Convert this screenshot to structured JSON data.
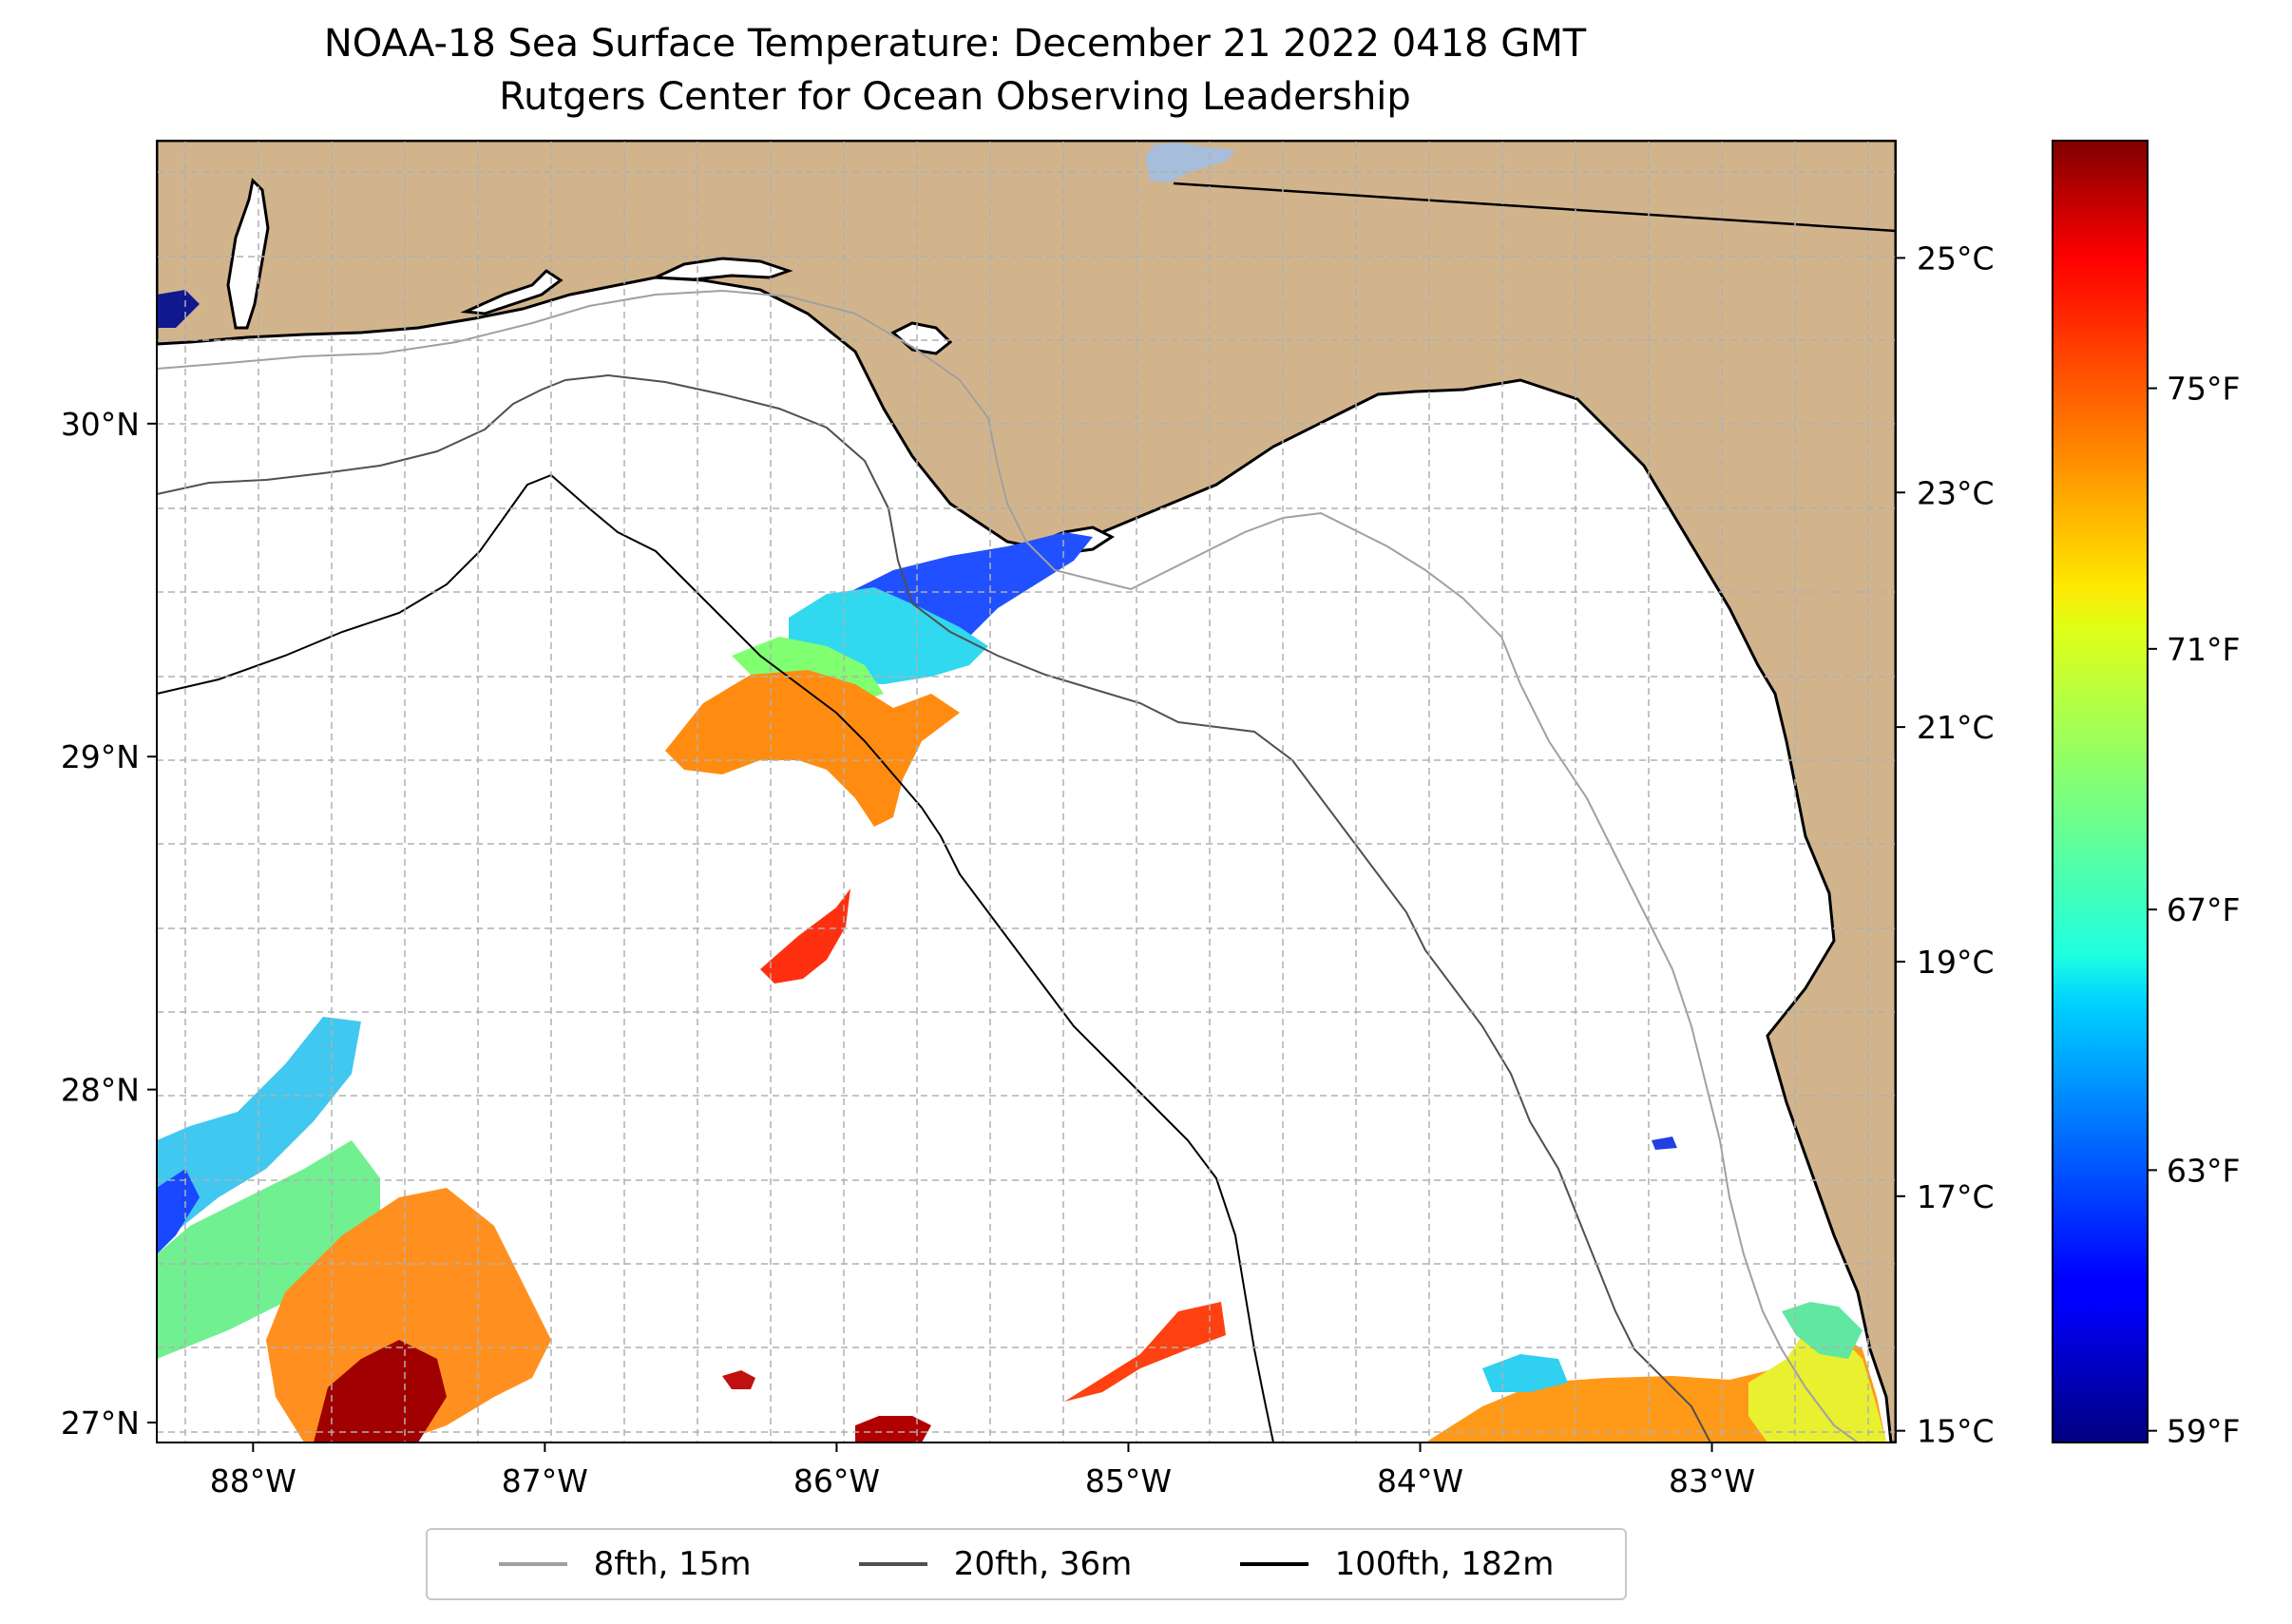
{
  "title": {
    "line1": "NOAA-18 Sea Surface Temperature: December 21 2022 0418 GMT",
    "line2": "Rutgers Center for Ocean Observing Leadership"
  },
  "map": {
    "lon_range": [
      -88.33,
      -82.37
    ],
    "lat_range": [
      26.94,
      30.85
    ],
    "lon_ticks": [
      -88,
      -87,
      -86,
      -85,
      -84,
      -83
    ],
    "lon_tick_labels": [
      "88°W",
      "87°W",
      "86°W",
      "85°W",
      "84°W",
      "83°W"
    ],
    "lat_ticks": [
      27,
      28,
      29,
      30
    ],
    "lat_tick_labels": [
      "27°N",
      "28°N",
      "29°N",
      "30°N"
    ],
    "gridlines": true,
    "land_color": "#d2b48c",
    "water_color": "#ffffff",
    "lake_color": "#a6bddb"
  },
  "colorbar": {
    "colormap": "jet",
    "celsius_range": [
      14.9,
      26.0
    ],
    "celsius_ticks": [
      15,
      17,
      19,
      21,
      23,
      25
    ],
    "celsius_labels": [
      "15°C",
      "17°C",
      "19°C",
      "21°C",
      "23°C",
      "25°C"
    ],
    "fahrenheit_ticks": [
      59,
      63,
      67,
      71,
      75
    ],
    "fahrenheit_labels": [
      "59°F",
      "63°F",
      "67°F",
      "71°F",
      "75°F"
    ]
  },
  "legend": {
    "location": "bottom-center",
    "items": [
      {
        "label": "8fth, 15m",
        "color": "#a0a0a0"
      },
      {
        "label": "20fth, 36m",
        "color": "#505050"
      },
      {
        "label": "100fth, 182m",
        "color": "#000000"
      }
    ]
  }
}
